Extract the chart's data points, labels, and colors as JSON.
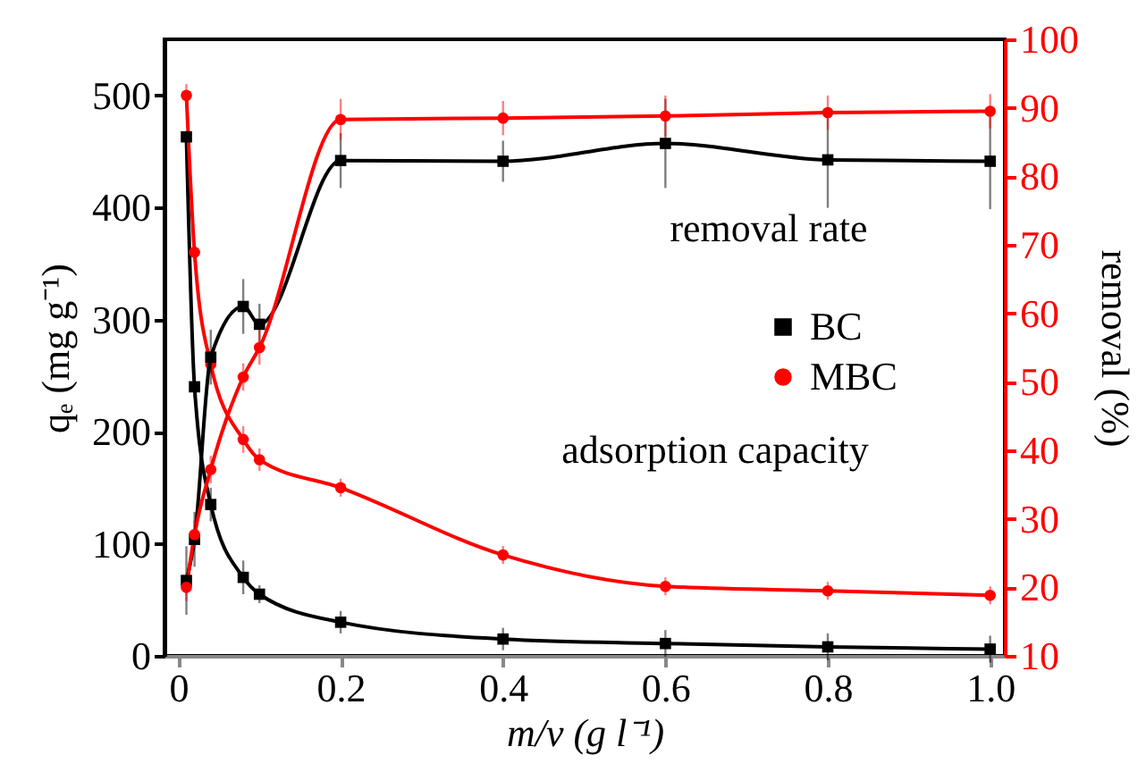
{
  "chart_data": {
    "type": "line",
    "xlabel": "m/v (g l⁻¹)",
    "ylabel": "qₑ (mg g⁻¹)",
    "y2label": "removal (%)",
    "x": [
      0.01,
      0.02,
      0.04,
      0.08,
      0.1,
      0.2,
      0.4,
      0.6,
      0.8,
      1.0
    ],
    "series": [
      {
        "name": "BC",
        "color": "#000000",
        "marker": "square",
        "values": [
          463,
          240,
          135,
          70,
          55,
          30,
          15,
          11,
          8,
          6
        ],
        "errors": [
          5,
          10,
          15,
          15,
          8,
          10,
          10,
          12,
          12,
          12
        ]
      },
      {
        "name": "MBC",
        "color": "#ff0000",
        "marker": "circle",
        "values": [
          500,
          360,
          260,
          193,
          175,
          150,
          90,
          62,
          58,
          54
        ],
        "errors": [
          10,
          8,
          8,
          12,
          10,
          8,
          8,
          8,
          8,
          8
        ]
      },
      {
        "color": "#000000",
        "marker": "square",
        "axis": "y2",
        "values": [
          21,
          27,
          53.6,
          61,
          58.4,
          82.3,
          82.2,
          84.8,
          82.4,
          82.2
        ],
        "errors": [
          5,
          4,
          4,
          4,
          3,
          4,
          3,
          6.5,
          7,
          7
        ]
      },
      {
        "color": "#ff0000",
        "marker": "circle",
        "axis": "y2",
        "values": [
          20,
          27.7,
          37.2,
          50.7,
          55,
          88.3,
          88.5,
          88.8,
          89.3,
          89.5
        ],
        "errors": [
          2,
          2,
          2,
          2,
          2.5,
          3,
          2.5,
          3,
          2.5,
          2.5
        ]
      }
    ],
    "xlim": [
      -0.017,
      1.018
    ],
    "xticks": [
      {
        "value": 0,
        "label": "0"
      },
      0.2,
      0.4,
      0.6,
      0.8,
      {
        "value": 1,
        "label": "1.0"
      }
    ],
    "ylim": [
      0,
      550
    ],
    "yticks": [
      0,
      100,
      200,
      300,
      400,
      500
    ],
    "y2lim": [
      10,
      100
    ],
    "y2ticks": [
      10,
      20,
      30,
      40,
      50,
      60,
      70,
      80,
      90,
      100
    ],
    "legend": "right",
    "annotations": [
      "removal rate",
      "adsorption capacity"
    ]
  }
}
